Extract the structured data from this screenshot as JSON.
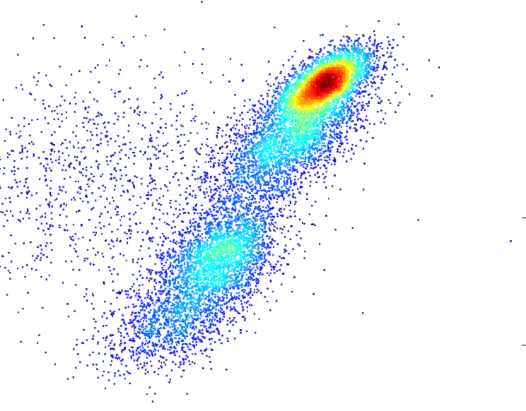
{
  "chart_data": {
    "type": "scatter",
    "subtype": "density-scatter",
    "title": "",
    "xlabel": "",
    "ylabel": "",
    "xlim": [
      0,
      100
    ],
    "ylim": [
      0,
      100
    ],
    "grid": false,
    "legend": "none",
    "colormap": [
      "#00007f",
      "#0000ff",
      "#007fff",
      "#00ffff",
      "#7fff7f",
      "#ffff00",
      "#ff7f00",
      "#ff0000",
      "#7f0000"
    ],
    "clusters": [
      {
        "center": [
          62,
          80
        ],
        "spread": [
          5.5,
          2.6
        ],
        "angle_deg": 45,
        "weight": 0.27
      },
      {
        "center": [
          55,
          66
        ],
        "spread": [
          10,
          4.6
        ],
        "angle_deg": 50,
        "weight": 0.27
      },
      {
        "center": [
          42,
          38
        ],
        "spread": [
          7,
          4.6
        ],
        "angle_deg": 52,
        "weight": 0.22
      },
      {
        "center": [
          33,
          22
        ],
        "spread": [
          8,
          4.6
        ],
        "angle_deg": 38,
        "weight": 0.12
      },
      {
        "center": [
          20,
          55
        ],
        "spread": [
          18,
          15
        ],
        "angle_deg": 0,
        "weight": 0.12
      }
    ],
    "point_count": 26000,
    "edge_marks": [
      {
        "side": "right",
        "y": 47
      },
      {
        "side": "right",
        "y": 16
      }
    ]
  }
}
